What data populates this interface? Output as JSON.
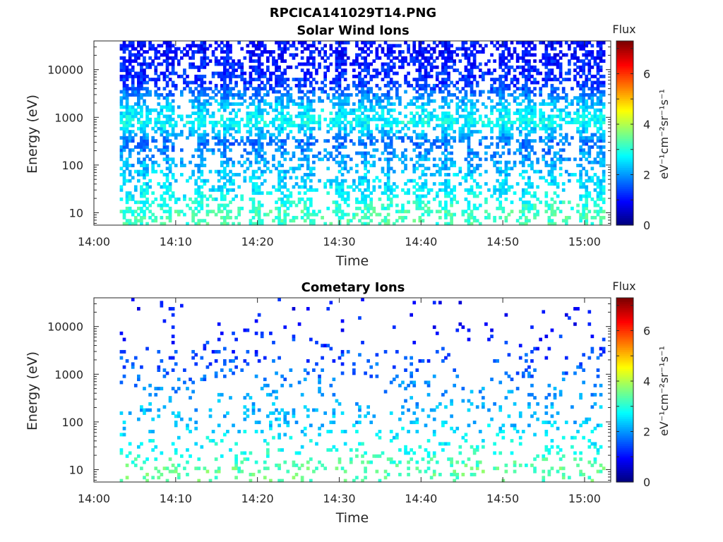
{
  "figure_title": "RPCICA141029T14.PNG",
  "chart_data": [
    {
      "type": "heatmap",
      "title": "Solar Wind Ions",
      "xlabel": "Time",
      "ylabel": "Energy (eV)",
      "x_ticks": [
        "14:00",
        "14:10",
        "14:20",
        "14:30",
        "14:40",
        "14:50",
        "15:00"
      ],
      "y_ticks": [
        "10",
        "100",
        "1000",
        "10000"
      ],
      "y_scale": "log",
      "ylim": [
        5.5,
        40000
      ],
      "colorbar": {
        "label": "Flux",
        "units": "eV⁻¹cm⁻²sr⁻¹s⁻¹",
        "ticks": [
          "0",
          "2",
          "4",
          "6"
        ],
        "range": [
          0,
          7.3
        ],
        "colormap": "jet"
      },
      "approx_flux_by_energy": [
        {
          "energy_eV": 10,
          "flux": 3.2
        },
        {
          "energy_eV": 30,
          "flux": 2.6
        },
        {
          "energy_eV": 100,
          "flux": 2.2
        },
        {
          "energy_eV": 300,
          "flux": 1.7
        },
        {
          "energy_eV": 800,
          "flux": 2.8
        },
        {
          "energy_eV": 1700,
          "flux": 2.4
        },
        {
          "energy_eV": 5000,
          "flux": 1.3
        },
        {
          "energy_eV": 20000,
          "flux": 1.0
        }
      ],
      "peak_times": [
        "14:04",
        "14:06",
        "14:09",
        "14:13",
        "14:16",
        "14:20",
        "14:23",
        "14:26",
        "14:30",
        "14:33",
        "14:36",
        "14:40",
        "14:43",
        "14:46",
        "14:50",
        "14:53",
        "14:56",
        "15:00",
        "15:02"
      ]
    },
    {
      "type": "heatmap",
      "title": "Cometary Ions",
      "xlabel": "Time",
      "ylabel": "Energy (eV)",
      "x_ticks": [
        "14:00",
        "14:10",
        "14:20",
        "14:30",
        "14:40",
        "14:50",
        "15:00"
      ],
      "y_ticks": [
        "10",
        "100",
        "1000",
        "10000"
      ],
      "y_scale": "log",
      "ylim": [
        5.5,
        40000
      ],
      "colorbar": {
        "label": "Flux",
        "units": "eV⁻¹cm⁻²sr⁻¹s⁻¹",
        "ticks": [
          "0",
          "2",
          "4",
          "6"
        ],
        "range": [
          0,
          7.3
        ],
        "colormap": "jet"
      },
      "approx_flux_by_energy": [
        {
          "energy_eV": 10,
          "flux": 3.4
        },
        {
          "energy_eV": 30,
          "flux": 2.8
        },
        {
          "energy_eV": 100,
          "flux": 2.3
        },
        {
          "energy_eV": 300,
          "flux": 2.1
        },
        {
          "energy_eV": 1000,
          "flux": 1.7
        },
        {
          "energy_eV": 10000,
          "flux": 1.0
        }
      ]
    }
  ]
}
